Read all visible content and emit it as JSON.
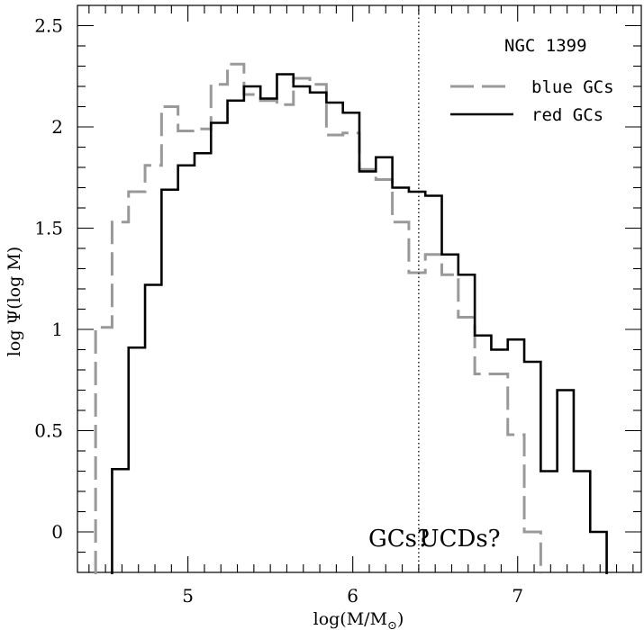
{
  "chart_data": {
    "type": "line",
    "title": "",
    "xlabel": "log(M/M",
    "xlabel_sub": "⊙",
    "xlabel_close": ")",
    "ylabel": "log Ψ(log M)",
    "xlim": [
      4.33,
      7.75
    ],
    "ylim": [
      -0.2,
      2.6
    ],
    "x_ticks": [
      5,
      6,
      7
    ],
    "x_tick_labels": [
      "5",
      "6",
      "7"
    ],
    "y_ticks": [
      0,
      0.5,
      1,
      1.5,
      2,
      2.5
    ],
    "y_tick_labels": [
      "0",
      "0.5",
      "1",
      "1.5",
      "2",
      "2.5"
    ],
    "grid": false,
    "legend": {
      "title": "NGC 1399",
      "position": "top-right"
    },
    "annotations": [
      {
        "text": "GCs?",
        "x": 6.28,
        "y": -0.03
      },
      {
        "text": "UCDs?",
        "x": 6.65,
        "y": -0.03
      }
    ],
    "reference_line": {
      "x": 6.4,
      "style": "dotted"
    },
    "series": [
      {
        "name": "blue GCs",
        "style": "dashed",
        "color": "#999999",
        "bin_edges": [
          4.44,
          4.54,
          4.64,
          4.74,
          4.84,
          4.94,
          5.04,
          5.14,
          5.24,
          5.34,
          5.44,
          5.54,
          5.64,
          5.74,
          5.84,
          5.94,
          6.04,
          6.14,
          6.24,
          6.34,
          6.44,
          6.54,
          6.64,
          6.74,
          6.84,
          6.94,
          7.04,
          7.14
        ],
        "values": [
          1.01,
          1.53,
          1.68,
          1.81,
          2.1,
          1.98,
          1.99,
          2.21,
          2.31,
          2.16,
          2.13,
          2.11,
          2.24,
          2.21,
          1.96,
          1.97,
          1.79,
          1.74,
          1.53,
          1.28,
          1.37,
          1.27,
          1.06,
          0.78,
          0.78,
          0.48,
          0.0
        ]
      },
      {
        "name": "red GCs",
        "style": "solid",
        "color": "#000000",
        "bin_edges": [
          4.54,
          4.64,
          4.74,
          4.84,
          4.94,
          5.04,
          5.14,
          5.24,
          5.34,
          5.44,
          5.54,
          5.64,
          5.74,
          5.84,
          5.94,
          6.04,
          6.14,
          6.24,
          6.34,
          6.44,
          6.54,
          6.64,
          6.74,
          6.84,
          6.94,
          7.04,
          7.14,
          7.24,
          7.34,
          7.44,
          7.54
        ],
        "values": [
          0.31,
          0.91,
          1.22,
          1.69,
          1.81,
          1.87,
          2.02,
          2.13,
          2.2,
          2.14,
          2.26,
          2.2,
          2.17,
          2.12,
          2.07,
          1.78,
          1.85,
          1.7,
          1.68,
          1.66,
          1.37,
          1.27,
          0.97,
          0.9,
          0.95,
          0.84,
          0.3,
          0.7,
          0.3,
          0.0
        ]
      }
    ]
  }
}
